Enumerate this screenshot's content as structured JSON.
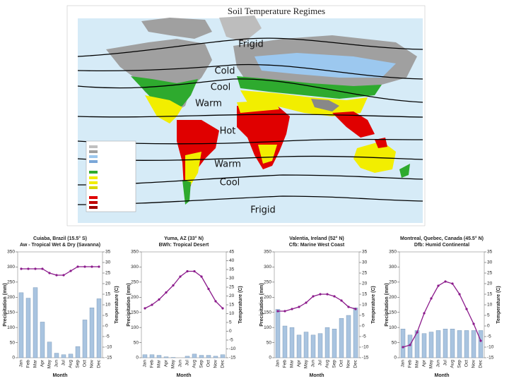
{
  "map": {
    "title": "Soil Temperature Regimes",
    "zones": [
      "Frigid",
      "Cold",
      "Cool",
      "Warm",
      "Hot",
      "Warm",
      "Cool",
      "Frigid"
    ]
  },
  "chart_data": [
    {
      "type": "combo",
      "title": [
        "Cuiaba, Brazil (15.5° S)",
        "Aw - Tropical Wet & Dry (Savanna)"
      ],
      "x_label": "Month",
      "y_label": "Precipitation (mm)",
      "y2_label": "Temperature (C)",
      "categories": [
        "Jan",
        "Feb",
        "Mar",
        "Apr",
        "May",
        "Jun",
        "Jul",
        "Aug",
        "Sep",
        "Oct",
        "Nov",
        "Dec"
      ],
      "series": [
        {
          "color": "#a9c4e0",
          "values": [
            215,
            197,
            232,
            118,
            52,
            15,
            10,
            12,
            37,
            125,
            165,
            195
          ]
        },
        {
          "color": "#8b1a8b",
          "axis": "y2",
          "values": [
            27,
            27,
            27,
            27,
            25,
            24,
            24,
            26,
            28,
            28,
            28,
            28
          ]
        }
      ],
      "ylim": [
        0,
        350
      ],
      "yticks": [
        0,
        50,
        100,
        150,
        200,
        250,
        300,
        350
      ],
      "y2lim": [
        -15,
        35
      ],
      "y2ticks": [
        -15,
        -10,
        -5,
        0,
        5,
        10,
        15,
        20,
        25,
        30,
        35
      ]
    },
    {
      "type": "combo",
      "title": [
        "Yuma, AZ (33° N)",
        "BWh: Tropical Desert"
      ],
      "x_label": "Month",
      "y_label": "Precipitation (mm)",
      "y2_label": "Temperature (C)",
      "categories": [
        "Jan",
        "Feb",
        "Mar",
        "Apr",
        "May",
        "Jun",
        "Jul",
        "Aug",
        "Sep",
        "Oct",
        "Nov",
        "Dec"
      ],
      "series": [
        {
          "color": "#a9c4e0",
          "values": [
            10,
            10,
            8,
            3,
            1,
            0,
            5,
            12,
            8,
            8,
            5,
            10
          ]
        },
        {
          "color": "#8b1a8b",
          "axis": "y2",
          "values": [
            13,
            15,
            18,
            22,
            26,
            31,
            34,
            34,
            31,
            24,
            17,
            13
          ]
        }
      ],
      "ylim": [
        0,
        350
      ],
      "yticks": [
        0,
        50,
        100,
        150,
        200,
        250,
        300,
        350
      ],
      "y2lim": [
        -15,
        45
      ],
      "y2ticks": [
        -15,
        -10,
        -5,
        0,
        5,
        10,
        15,
        20,
        25,
        30,
        35,
        40,
        45
      ]
    },
    {
      "type": "combo",
      "title": [
        "Valentia, Ireland (52° N)",
        "Cfb: Marine West Coast"
      ],
      "x_label": "Month",
      "y_label": "Precipitation (mm)",
      "y2_label": "Temperature (C)",
      "categories": [
        "Jan",
        "Feb",
        "Mar",
        "Apr",
        "May",
        "Jun",
        "Jul",
        "Aug",
        "Sep",
        "Oct",
        "Nov",
        "Dec"
      ],
      "series": [
        {
          "color": "#a9c4e0",
          "values": [
            160,
            105,
            100,
            75,
            85,
            75,
            80,
            100,
            95,
            130,
            140,
            165
          ]
        },
        {
          "color": "#8b1a8b",
          "axis": "y2",
          "values": [
            7,
            7,
            8,
            9,
            11,
            14,
            15,
            15,
            14,
            12,
            9,
            8
          ]
        }
      ],
      "ylim": [
        0,
        350
      ],
      "yticks": [
        0,
        50,
        100,
        150,
        200,
        250,
        300,
        350
      ],
      "y2lim": [
        -15,
        35
      ],
      "y2ticks": [
        -15,
        -10,
        -5,
        0,
        5,
        10,
        15,
        20,
        25,
        30,
        35
      ]
    },
    {
      "type": "combo",
      "title": [
        "Montreal, Quebec, Canada (45.5° N)",
        "Dfb: Humid Continental"
      ],
      "x_label": "Month",
      "y_label": "Precipitation (mm)",
      "y2_label": "Temperature (C)",
      "categories": [
        "Jan",
        "Feb",
        "Mar",
        "Apr",
        "May",
        "Jun",
        "Jul",
        "Aug",
        "Sep",
        "Oct",
        "Nov",
        "Dec"
      ],
      "series": [
        {
          "color": "#a9c4e0",
          "values": [
            95,
            75,
            90,
            80,
            85,
            90,
            95,
            95,
            90,
            90,
            90,
            90
          ]
        },
        {
          "color": "#8b1a8b",
          "axis": "y2",
          "values": [
            -10,
            -9,
            -3,
            6,
            13,
            19,
            21,
            20,
            15,
            8,
            1,
            -7
          ]
        }
      ],
      "ylim": [
        0,
        350
      ],
      "yticks": [
        0,
        50,
        100,
        150,
        200,
        250,
        300,
        350
      ],
      "y2lim": [
        -15,
        35
      ],
      "y2ticks": [
        -15,
        -10,
        -5,
        0,
        5,
        10,
        15,
        20,
        25,
        30,
        35
      ]
    }
  ]
}
